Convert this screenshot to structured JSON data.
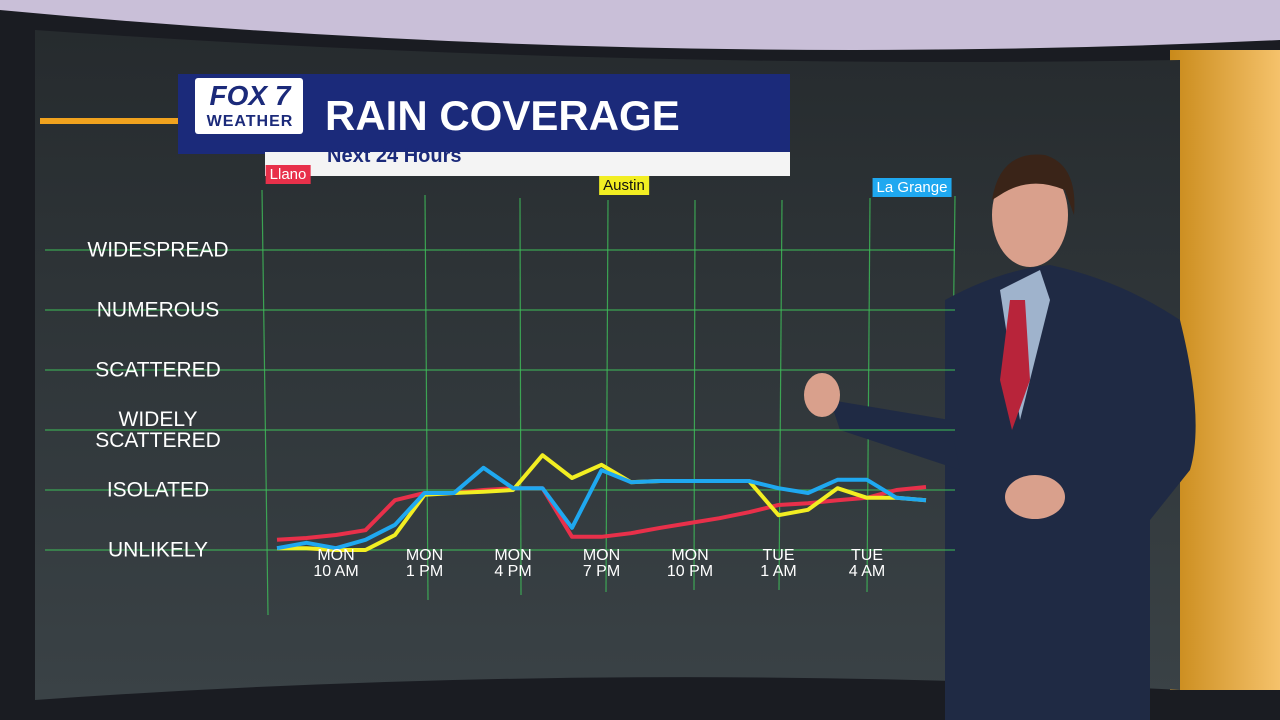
{
  "header": {
    "logo_top": "FOX 7",
    "logo_bottom": "WEATHER",
    "title": "RAIN COVERAGE",
    "subtitle": "Next 24 Hours"
  },
  "chart_data": {
    "type": "line",
    "categories": [
      null,
      null,
      "MON\n10 AM",
      null,
      null,
      "MON\n1 PM",
      null,
      null,
      "MON\n4 PM",
      null,
      null,
      "MON\n7 PM",
      null,
      null,
      "MON\n10 PM",
      null,
      null,
      "TUE\n1 AM",
      null,
      null,
      "TUE\n4 AM",
      null,
      null
    ],
    "series": [
      {
        "name": "Llano",
        "color": "#e8304a",
        "values": [
          0.17,
          0.2,
          0.25,
          0.33,
          0.83,
          0.95,
          0.95,
          1,
          1.03,
          1.03,
          0.22,
          0.22,
          0.28,
          0.37,
          0.45,
          0.53,
          0.63,
          0.75,
          0.78,
          0.83,
          0.87,
          1,
          1.05
        ]
      },
      {
        "name": "Austin",
        "color": "#f2ee22",
        "values": [
          0.03,
          0.03,
          0,
          0,
          0.25,
          0.92,
          0.95,
          0.97,
          1,
          1.58,
          1.2,
          1.42,
          1.13,
          1.15,
          1.15,
          1.15,
          1.15,
          0.58,
          0.67,
          1.03,
          0.87,
          0.87,
          0.83
        ]
      },
      {
        "name": "La Grange",
        "color": "#1fa8f0",
        "values": [
          0.03,
          0.12,
          0.03,
          0.17,
          0.42,
          0.95,
          0.95,
          1.37,
          1.03,
          1.03,
          0.37,
          1.33,
          1.13,
          1.15,
          1.15,
          1.15,
          1.15,
          1.03,
          0.95,
          1.17,
          1.17,
          0.87,
          0.83
        ]
      }
    ],
    "ylim": [
      -0.3,
      5.5
    ],
    "yticks": [
      {
        "value": 0,
        "label": "UNLIKELY"
      },
      {
        "value": 1,
        "label": "ISOLATED"
      },
      {
        "value": 2,
        "label": "WIDELY\nSCATTERED"
      },
      {
        "value": 3,
        "label": "SCATTERED"
      },
      {
        "value": 4,
        "label": "NUMEROUS"
      },
      {
        "value": 5,
        "label": "WIDESPREAD"
      }
    ],
    "grid": true
  }
}
